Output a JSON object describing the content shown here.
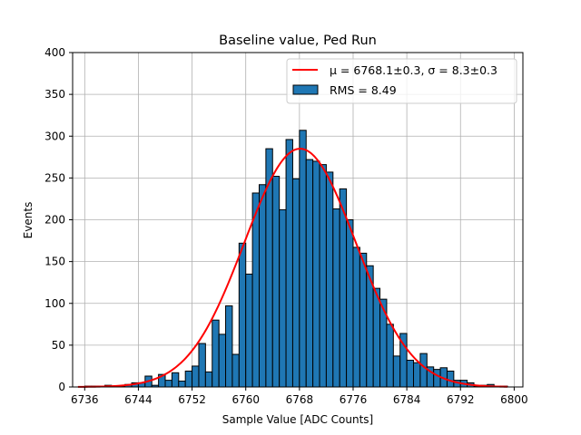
{
  "chart_data": {
    "type": "bar",
    "title": "Baseline value, Ped Run",
    "xlabel": "Sample Value [ADC Counts]",
    "ylabel": "Events",
    "xlim": [
      6734.2,
      6801.3
    ],
    "ylim": [
      0,
      400
    ],
    "xticks": [
      6736,
      6744,
      6752,
      6760,
      6768,
      6776,
      6784,
      6792,
      6800
    ],
    "yticks": [
      0,
      50,
      100,
      150,
      200,
      250,
      300,
      350,
      400
    ],
    "grid": true,
    "legend_position": "top-right",
    "bin_width": 1,
    "bins": {
      "left_edges": [
        6735,
        6736,
        6737,
        6738,
        6739,
        6740,
        6741,
        6742,
        6743,
        6744,
        6745,
        6746,
        6747,
        6748,
        6749,
        6750,
        6751,
        6752,
        6753,
        6754,
        6755,
        6756,
        6757,
        6758,
        6759,
        6760,
        6761,
        6762,
        6763,
        6764,
        6765,
        6766,
        6767,
        6768,
        6769,
        6770,
        6771,
        6772,
        6773,
        6774,
        6775,
        6776,
        6777,
        6778,
        6779,
        6780,
        6781,
        6782,
        6783,
        6784,
        6785,
        6786,
        6787,
        6788,
        6789,
        6790,
        6791,
        6792,
        6793,
        6794,
        6795,
        6796,
        6797,
        6798
      ],
      "counts": [
        0,
        1,
        1,
        1,
        2,
        1,
        1,
        3,
        5,
        5,
        13,
        2,
        15,
        8,
        17,
        7,
        19,
        25,
        52,
        18,
        80,
        63,
        97,
        39,
        172,
        135,
        232,
        242,
        285,
        252,
        212,
        296,
        249,
        307,
        272,
        270,
        266,
        257,
        213,
        237,
        200,
        167,
        160,
        145,
        118,
        105,
        75,
        37,
        64,
        32,
        29,
        40,
        24,
        21,
        23,
        19,
        8,
        8,
        5,
        1,
        2,
        3,
        1,
        1
      ]
    },
    "series": [
      {
        "name": "RMS = 8.49",
        "type": "histogram",
        "color": "#1f77b4",
        "edgecolor": "#000000"
      },
      {
        "name": "μ = 6768.1±0.3, σ = 8.3±0.3",
        "type": "gaussian-fit",
        "color": "#ff0000",
        "mu": 6768.1,
        "sigma": 8.3,
        "amplitude": 285,
        "x_range": [
          6735,
          6799
        ]
      }
    ]
  }
}
